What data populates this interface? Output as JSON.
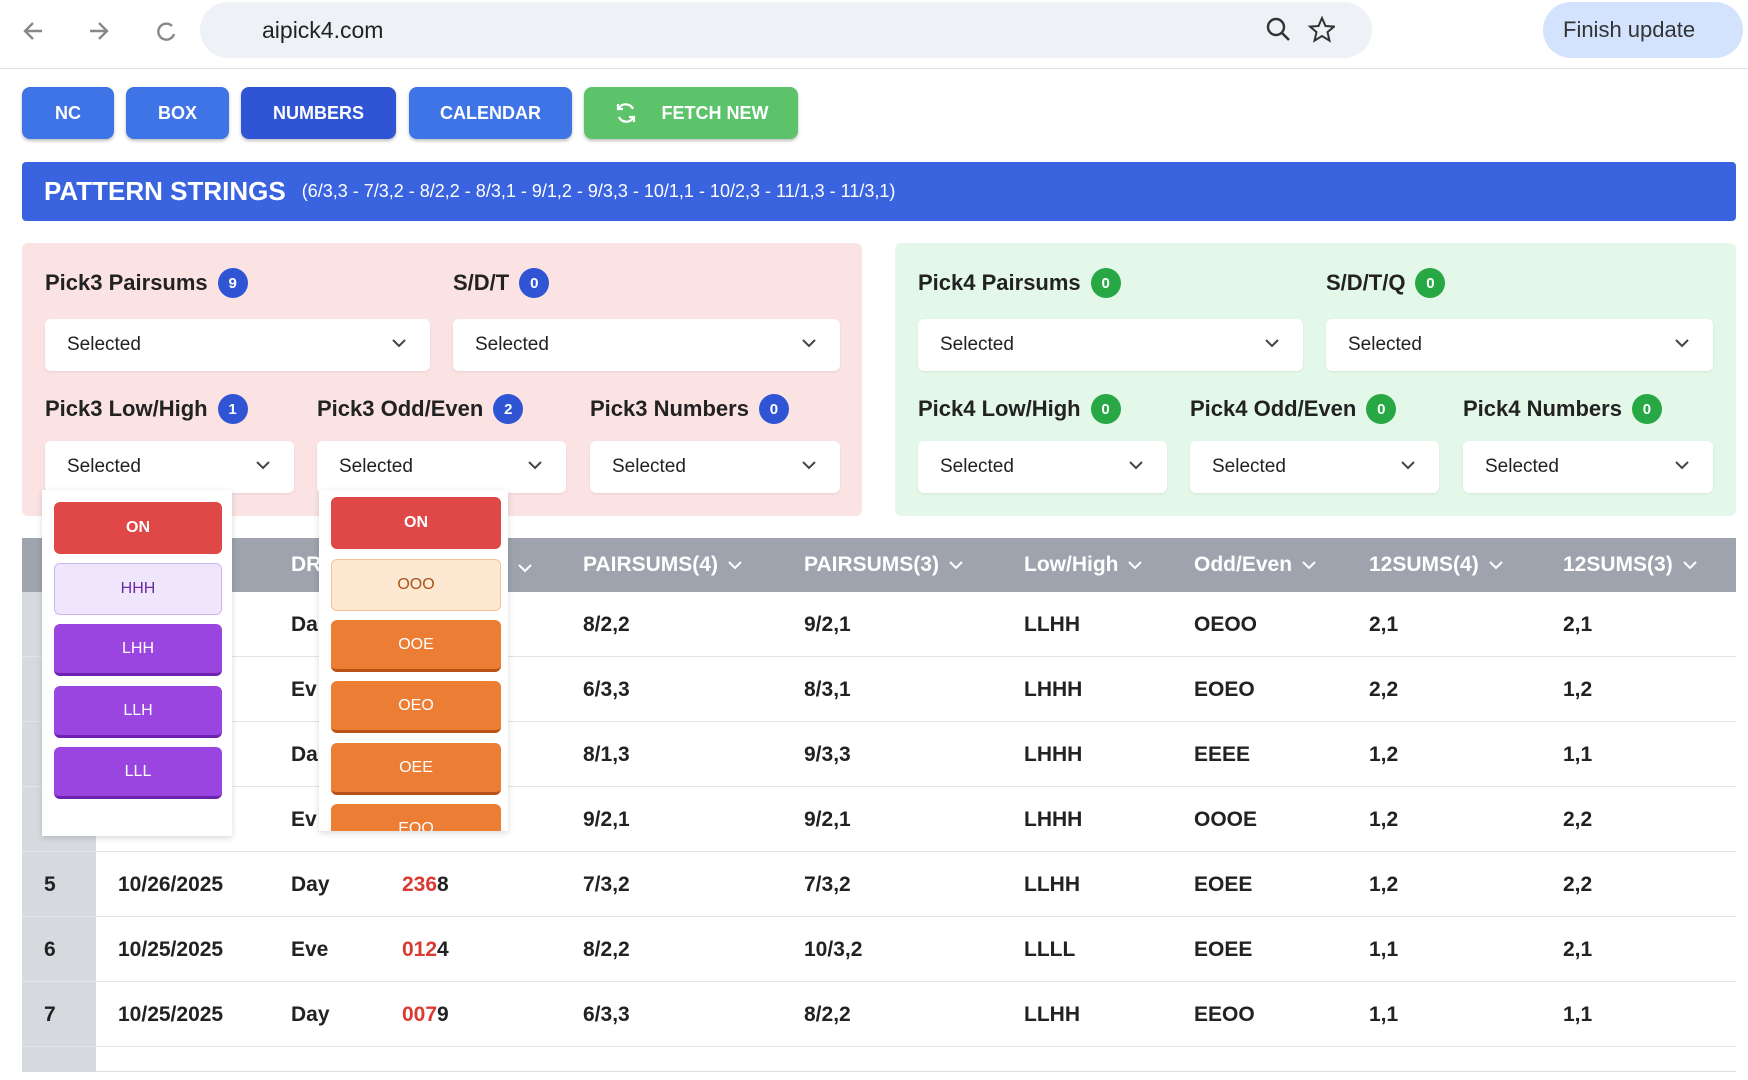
{
  "browser": {
    "url": "aipick4.com",
    "update_button": "Finish update"
  },
  "toolbar": [
    "NC",
    "BOX",
    "NUMBERS",
    "CALENDAR",
    "FETCH NEW"
  ],
  "banner": {
    "title": "PATTERN STRINGS",
    "subtitle": "(6/3,3 - 7/3,2 - 8/2,2 - 8/3,1 - 9/1,2 - 9/3,3 - 10/1,1 - 10/2,3 - 11/1,3 - 11/3,1)"
  },
  "pick3_filters": [
    {
      "label": "Pick3 Pairsums",
      "count": 9,
      "value": "Selected"
    },
    {
      "label": "S/D/T",
      "count": 0,
      "value": "Selected"
    },
    {
      "label": "Pick3 Low/High",
      "count": 1,
      "value": "Selected"
    },
    {
      "label": "Pick3 Odd/Even",
      "count": 2,
      "value": "Selected"
    },
    {
      "label": "Pick3 Numbers",
      "count": 0,
      "value": "Selected"
    }
  ],
  "pick4_filters": [
    {
      "label": "Pick4 Pairsums",
      "count": 0,
      "value": "Selected"
    },
    {
      "label": "S/D/T/Q",
      "count": 0,
      "value": "Selected"
    },
    {
      "label": "Pick4 Low/High",
      "count": 0,
      "value": "Selected"
    },
    {
      "label": "Pick4 Odd/Even",
      "count": 0,
      "value": "Selected"
    },
    {
      "label": "Pick4 Numbers",
      "count": 0,
      "value": "Selected"
    }
  ],
  "lowhigh_dropdown": [
    "ON",
    "HHH",
    "LHH",
    "LLH",
    "LLL"
  ],
  "oddeven_dropdown": [
    "ON",
    "OOO",
    "OOE",
    "OEO",
    "OEE",
    "EOO"
  ],
  "table": {
    "headers": [
      null,
      null,
      "DR",
      null,
      "PAIRSUMS(4)",
      "PAIRSUMS(3)",
      "Low/High",
      "Odd/Even",
      "12SUMS(4)",
      "12SUMS(3)"
    ],
    "rows": [
      [
        null,
        null,
        "Da",
        null,
        "8/2,2",
        "9/2,1",
        "LLHH",
        "OEOO",
        "2,1",
        "2,1"
      ],
      [
        null,
        null,
        "Ev",
        null,
        "6/3,3",
        "8/3,1",
        "LHHH",
        "EOEO",
        "2,2",
        "1,2"
      ],
      [
        null,
        null,
        "Da",
        null,
        "8/1,3",
        "9/3,3",
        "LHHH",
        "EEEE",
        "1,2",
        "1,1"
      ],
      [
        null,
        null,
        "Ev",
        null,
        "9/2,1",
        "9/2,1",
        "LHHH",
        "OOOE",
        "1,2",
        "2,2"
      ],
      [
        "5",
        "10/26/2025",
        "Day",
        {
          "hit": "236",
          "rest": "8"
        },
        "7/3,2",
        "7/3,2",
        "LLHH",
        "EOEE",
        "1,2",
        "2,2"
      ],
      [
        "6",
        "10/25/2025",
        "Eve",
        {
          "hit": "012",
          "rest": "4"
        },
        "8/2,2",
        "10/3,2",
        "LLLL",
        "EOEE",
        "1,1",
        "2,1"
      ],
      [
        "7",
        "10/25/2025",
        "Day",
        {
          "hit": "007",
          "rest": "9"
        },
        "6/3,3",
        "8/2,2",
        "LLHH",
        "EEOO",
        "1,1",
        "1,1"
      ]
    ]
  }
}
